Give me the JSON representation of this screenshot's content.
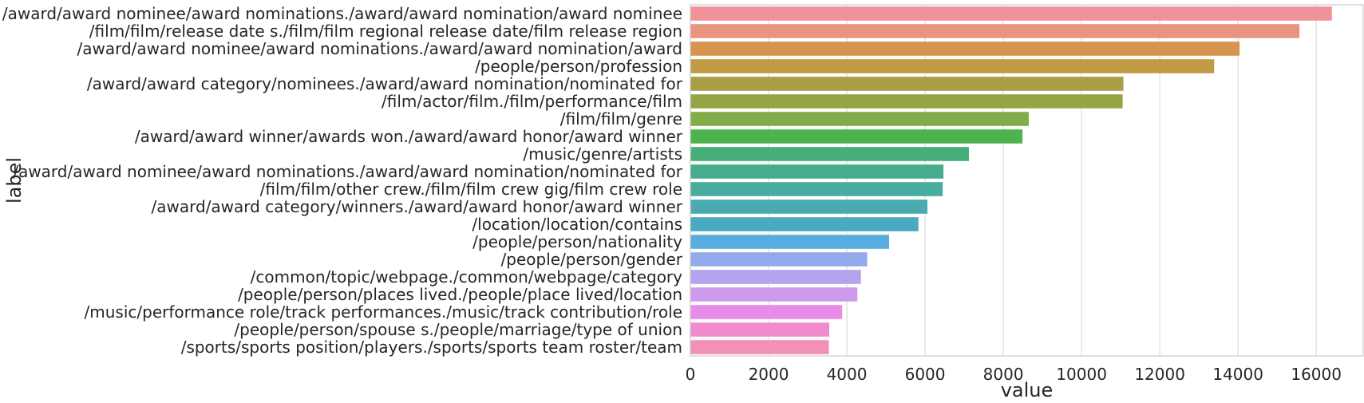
{
  "chart_data": {
    "type": "bar",
    "orientation": "horizontal",
    "xlabel": "value",
    "ylabel": "label",
    "xlim": [
      0,
      17200
    ],
    "xticks": [
      0,
      2000,
      4000,
      6000,
      8000,
      10000,
      12000,
      14000,
      16000
    ],
    "grid": "vertical",
    "categories": [
      "/award/award nominee/award nominations./award/award nomination/award nominee",
      "/film/film/release date s./film/film regional release date/film release region",
      "/award/award nominee/award nominations./award/award nomination/award",
      "/people/person/profession",
      "/award/award category/nominees./award/award nomination/nominated for",
      "/film/actor/film./film/performance/film",
      "/film/film/genre",
      "/award/award winner/awards won./award/award honor/award winner",
      "/music/genre/artists",
      "/award/award nominee/award nominations./award/award nomination/nominated for",
      "/film/film/other crew./film/film crew gig/film crew role",
      "/award/award category/winners./award/award honor/award winner",
      "/location/location/contains",
      "/people/person/nationality",
      "/people/person/gender",
      "/common/topic/webpage./common/webpage/category",
      "/people/person/places lived./people/place lived/location",
      "/music/performance role/track performances./music/track contribution/role",
      "/people/person/spouse s./people/marriage/type of union",
      "/sports/sports position/players./sports/sports team roster/team"
    ],
    "values": [
      16400,
      15570,
      14040,
      13390,
      11070,
      11050,
      8650,
      8490,
      7120,
      6470,
      6450,
      6060,
      5830,
      5080,
      4520,
      4360,
      4270,
      3880,
      3550,
      3540
    ],
    "colors": [
      "#f1919a",
      "#e8947f",
      "#d6944e",
      "#c09a45",
      "#a89e43",
      "#97a445",
      "#80ad47",
      "#4db34c",
      "#46ae78",
      "#47ab8d",
      "#48ac9e",
      "#49aaaf",
      "#4aaac2",
      "#58ace0",
      "#94a8ec",
      "#b4a4ee",
      "#cc9bec",
      "#e98ce8",
      "#ef8ccb",
      "#f290b7"
    ]
  }
}
